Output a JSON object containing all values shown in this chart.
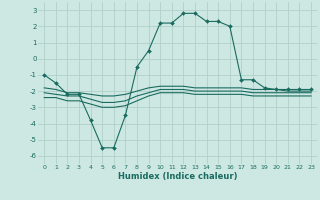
{
  "xlabel": "Humidex (Indice chaleur)",
  "background_color": "#cde8e2",
  "grid_color": "#aed0c8",
  "line_color": "#1a6b60",
  "xlim": [
    -0.5,
    23.5
  ],
  "ylim": [
    -6.5,
    3.5
  ],
  "yticks": [
    -6,
    -5,
    -4,
    -3,
    -2,
    -1,
    0,
    1,
    2,
    3
  ],
  "xticks": [
    0,
    1,
    2,
    3,
    4,
    5,
    6,
    7,
    8,
    9,
    10,
    11,
    12,
    13,
    14,
    15,
    16,
    17,
    18,
    19,
    20,
    21,
    22,
    23
  ],
  "series": [
    {
      "x": [
        0,
        1,
        2,
        3,
        4,
        5,
        6,
        7,
        8,
        9,
        10,
        11,
        12,
        13,
        14,
        15,
        16,
        17,
        18,
        19,
        20,
        21,
        22,
        23
      ],
      "y": [
        -1.0,
        -1.5,
        -2.2,
        -2.2,
        -3.8,
        -5.5,
        -5.5,
        -3.5,
        -0.5,
        0.5,
        2.2,
        2.2,
        2.8,
        2.8,
        2.3,
        2.3,
        2.0,
        -1.3,
        -1.3,
        -1.8,
        -1.9,
        -1.9,
        -1.9,
        -1.9
      ],
      "marker": true
    },
    {
      "x": [
        0,
        1,
        2,
        3,
        4,
        5,
        6,
        7,
        8,
        9,
        10,
        11,
        12,
        13,
        14,
        15,
        16,
        17,
        18,
        19,
        20,
        21,
        22,
        23
      ],
      "y": [
        -1.8,
        -1.9,
        -2.1,
        -2.1,
        -2.2,
        -2.3,
        -2.3,
        -2.2,
        -2.0,
        -1.8,
        -1.7,
        -1.7,
        -1.7,
        -1.8,
        -1.8,
        -1.8,
        -1.8,
        -1.8,
        -1.9,
        -1.9,
        -1.9,
        -2.0,
        -2.0,
        -2.0
      ],
      "marker": false
    },
    {
      "x": [
        0,
        1,
        2,
        3,
        4,
        5,
        6,
        7,
        8,
        9,
        10,
        11,
        12,
        13,
        14,
        15,
        16,
        17,
        18,
        19,
        20,
        21,
        22,
        23
      ],
      "y": [
        -2.1,
        -2.2,
        -2.3,
        -2.3,
        -2.5,
        -2.7,
        -2.7,
        -2.6,
        -2.3,
        -2.1,
        -1.9,
        -1.9,
        -1.9,
        -2.0,
        -2.0,
        -2.0,
        -2.0,
        -2.0,
        -2.1,
        -2.1,
        -2.1,
        -2.1,
        -2.1,
        -2.1
      ],
      "marker": false
    },
    {
      "x": [
        0,
        1,
        2,
        3,
        4,
        5,
        6,
        7,
        8,
        9,
        10,
        11,
        12,
        13,
        14,
        15,
        16,
        17,
        18,
        19,
        20,
        21,
        22,
        23
      ],
      "y": [
        -2.4,
        -2.4,
        -2.6,
        -2.6,
        -2.8,
        -3.0,
        -3.0,
        -2.9,
        -2.6,
        -2.3,
        -2.1,
        -2.1,
        -2.1,
        -2.2,
        -2.2,
        -2.2,
        -2.2,
        -2.2,
        -2.3,
        -2.3,
        -2.3,
        -2.3,
        -2.3,
        -2.3
      ],
      "marker": false
    }
  ]
}
